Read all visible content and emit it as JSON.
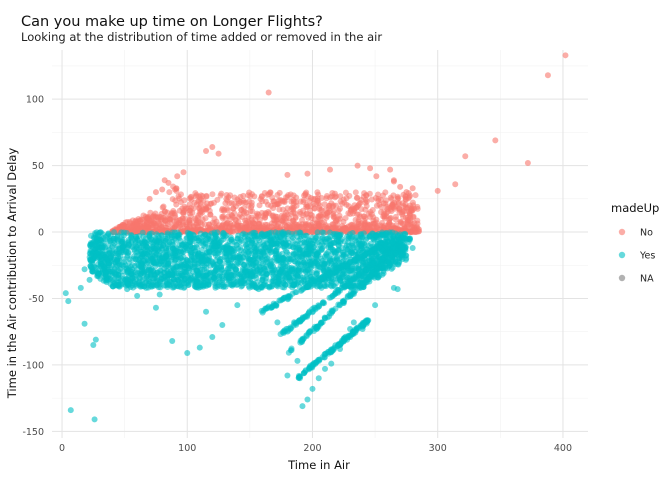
{
  "chart_data": {
    "type": "scatter",
    "title": "Can you make up time on Longer Flights?",
    "subtitle": "Looking at the distribution of time added or removed in the air",
    "xlabel": "Time in Air",
    "ylabel": "Time in the Air contribution to Arrival Delay",
    "xlim": [
      -8,
      420
    ],
    "ylim": [
      -155,
      137
    ],
    "x_ticks": [
      0,
      100,
      200,
      300,
      400
    ],
    "y_ticks": [
      -150,
      -100,
      -50,
      0,
      50,
      100
    ],
    "grid": true,
    "legend": {
      "title": "madeUp",
      "position": "right",
      "entries": [
        {
          "label": "No",
          "color": "#F8766D"
        },
        {
          "label": "Yes",
          "color": "#00BFC4"
        },
        {
          "label": "NA",
          "color": "#7F7F7F"
        }
      ]
    },
    "series": [
      {
        "name": "No",
        "color": "#F8766D",
        "x": [
          165,
          120,
          115,
          125,
          97,
          92,
          82,
          85,
          75,
          70,
          80,
          180,
          196,
          214,
          236,
          246,
          251,
          262,
          265,
          268,
          265,
          270,
          275,
          280,
          285,
          300,
          314,
          322,
          346,
          372,
          388,
          402
        ],
        "y": [
          105,
          64,
          61,
          59,
          45,
          42,
          39,
          37,
          30,
          25,
          32,
          43,
          44,
          47,
          50,
          48,
          42,
          47,
          39,
          25,
          38,
          34,
          30,
          33,
          2,
          31,
          36,
          57,
          69,
          52,
          118,
          133
        ]
      },
      {
        "name": "Yes",
        "color": "#00BFC4",
        "x": [
          7,
          26,
          18,
          25,
          27,
          15,
          5,
          3,
          18,
          22,
          38,
          45,
          52,
          60,
          75,
          78,
          88,
          100,
          110,
          115,
          120,
          128,
          140,
          157,
          165,
          172,
          180,
          188,
          192,
          196,
          200,
          205,
          210,
          215,
          222,
          230,
          233,
          240,
          250,
          265,
          268,
          280
        ],
        "y": [
          -134,
          -141,
          -69,
          -85,
          -81,
          -42,
          -52,
          -46,
          -28,
          -36,
          -30,
          -40,
          -43,
          -48,
          -57,
          -47,
          -82,
          -91,
          -87,
          -60,
          -79,
          -70,
          -55,
          -43,
          -56,
          -68,
          -108,
          -97,
          -131,
          -126,
          -118,
          -110,
          -103,
          -99,
          -88,
          -73,
          -68,
          -73,
          -55,
          -42,
          -43,
          -12
        ]
      }
    ],
    "dense_bands": {
      "No": {
        "x_range": [
          40,
          285
        ],
        "y_range": [
          0,
          30
        ]
      },
      "Yes": {
        "x_range": [
          22,
          275
        ],
        "y_range": [
          -50,
          0
        ]
      }
    }
  }
}
